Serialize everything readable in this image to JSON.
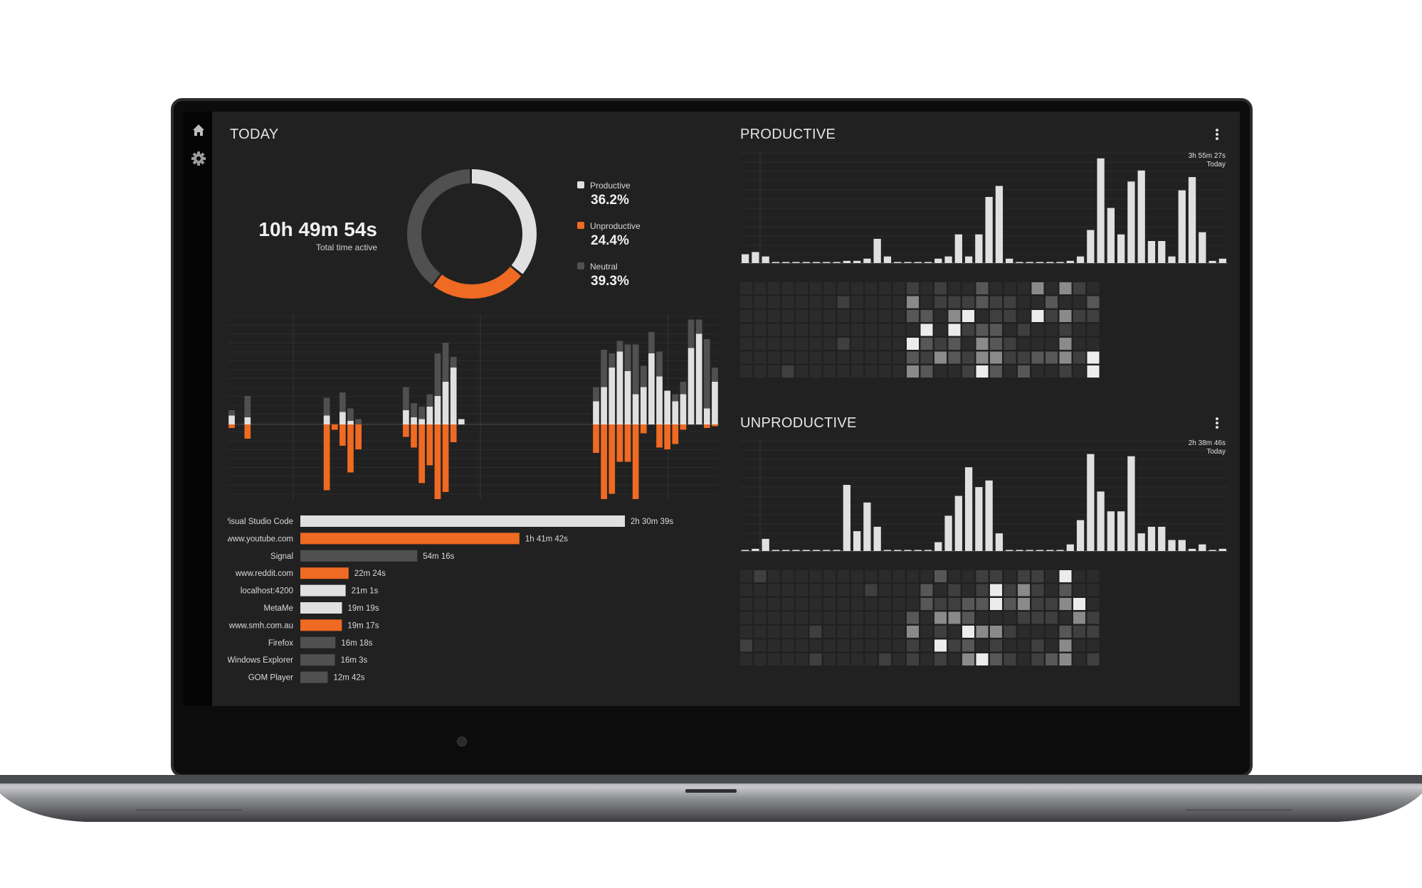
{
  "sidebar": {
    "items": [
      {
        "icon": "home-icon"
      },
      {
        "icon": "gear-icon"
      }
    ]
  },
  "today": {
    "title": "TODAY",
    "total_time": "10h 49m 54s",
    "total_label": "Total time active",
    "legend": [
      {
        "label": "Productive",
        "value": "36.2%",
        "color": "#e0e0e0"
      },
      {
        "label": "Unproductive",
        "value": "24.4%",
        "color": "#ef6a22"
      },
      {
        "label": "Neutral",
        "value": "39.3%",
        "color": "#505050"
      }
    ]
  },
  "colors": {
    "productive": "#e0e0e0",
    "unproductive": "#ef6a22",
    "neutral": "#505050",
    "background": "#212121"
  },
  "apps": [
    {
      "name": "Visual Studio Code",
      "time": "2h 30m 39s",
      "minutes": 150.65,
      "category": "productive"
    },
    {
      "name": "www.youtube.com",
      "time": "1h 41m 42s",
      "minutes": 101.7,
      "category": "unproductive"
    },
    {
      "name": "Signal",
      "time": "54m 16s",
      "minutes": 54.27,
      "category": "neutral"
    },
    {
      "name": "www.reddit.com",
      "time": "22m 24s",
      "minutes": 22.4,
      "category": "unproductive"
    },
    {
      "name": "localhost:4200",
      "time": "21m 1s",
      "minutes": 21.02,
      "category": "productive"
    },
    {
      "name": "MetaMe",
      "time": "19m 19s",
      "minutes": 19.32,
      "category": "productive"
    },
    {
      "name": "www.smh.com.au",
      "time": "19m 17s",
      "minutes": 19.28,
      "category": "unproductive"
    },
    {
      "name": "Firefox",
      "time": "16m 18s",
      "minutes": 16.3,
      "category": "neutral"
    },
    {
      "name": "Windows Explorer",
      "time": "16m 3s",
      "minutes": 16.05,
      "category": "neutral"
    },
    {
      "name": "GOM Player",
      "time": "12m 42s",
      "minutes": 12.7,
      "category": "neutral"
    }
  ],
  "productive_panel": {
    "title": "PRODUCTIVE",
    "tooltip_time": "3h 55m 27s",
    "tooltip_label": "Today"
  },
  "unproductive_panel": {
    "title": "UNPRODUCTIVE",
    "tooltip_time": "2h 38m 46s",
    "tooltip_label": "Today"
  },
  "chart_data": [
    {
      "type": "pie",
      "labels": [
        "Productive",
        "Unproductive",
        "Neutral"
      ],
      "values": [
        36.2,
        24.4,
        39.3
      ]
    },
    {
      "type": "bar",
      "stacked": true,
      "series": [
        {
          "name": "Productive",
          "values": [
            0.5,
            0,
            0.4,
            0,
            0,
            0,
            0,
            0,
            0,
            0,
            0,
            0,
            0.5,
            0,
            0.7,
            0.2,
            0,
            0,
            0,
            0,
            0,
            0,
            0.8,
            0.4,
            0.3,
            1,
            1.6,
            2.4,
            3.2,
            0.3,
            0,
            0,
            0,
            0,
            0,
            0,
            0,
            0,
            0,
            0,
            0,
            0,
            0,
            0,
            0,
            0,
            1.3,
            2.1,
            3.2,
            4.1,
            3,
            1.7,
            2.1,
            4,
            2.7,
            1.9,
            1.3,
            1.7,
            4.3,
            5.1,
            0.9,
            2.4
          ]
        },
        {
          "name": "Unproductive",
          "values": [
            -0.2,
            0,
            -0.8,
            0,
            0,
            0,
            0,
            0,
            0,
            0,
            0,
            0,
            -3.7,
            -0.3,
            -1.2,
            -2.7,
            -1.4,
            0,
            0,
            0,
            0,
            0,
            -0.7,
            -1.3,
            -3.3,
            -2.3,
            -4.3,
            -3.8,
            -1,
            0,
            0,
            0,
            0,
            0,
            0,
            0,
            0,
            0,
            0,
            0,
            0,
            0,
            0,
            0,
            0,
            0,
            -1.6,
            -5.3,
            -3.9,
            -2.1,
            -2.1,
            -5.2,
            -0.5,
            0,
            -1.3,
            -1.4,
            -1.1,
            -0.3,
            0,
            0,
            -0.2,
            -0.1
          ]
        },
        {
          "name": "Neutral",
          "values": [
            0.3,
            0,
            1.2,
            0,
            0,
            0,
            0,
            0,
            0,
            0,
            0,
            0,
            1,
            0,
            1.1,
            0.7,
            0.3,
            0,
            0,
            0,
            0,
            0,
            1.3,
            0.8,
            0.7,
            0.7,
            2.4,
            2.2,
            0.6,
            0,
            0,
            0,
            0,
            0,
            0,
            0,
            0,
            0,
            0,
            0,
            0,
            0,
            0,
            0,
            0,
            0,
            0.8,
            2.1,
            0.8,
            0.6,
            1.5,
            2.8,
            1.2,
            1.2,
            1.4,
            0,
            0.4,
            0.7,
            1.6,
            0.8,
            3.9,
            0.8
          ]
        }
      ]
    },
    {
      "type": "bar",
      "series": [
        {
          "name": "Productive",
          "values": [
            0.08,
            0.1,
            0.06,
            0,
            0,
            0,
            0,
            0,
            0,
            0,
            0.02,
            0.02,
            0.04,
            0.22,
            0.06,
            0,
            0,
            0,
            0,
            0.04,
            0.06,
            0.26,
            0.06,
            0.26,
            0.6,
            0.7,
            0.04,
            0,
            0,
            0,
            0,
            0,
            0.02,
            0.06,
            0.3,
            0.95,
            0.5,
            0.26,
            0.74,
            0.84,
            0.2,
            0.2,
            0.06,
            0.66,
            0.78,
            0.28,
            0.02,
            0.04
          ]
        }
      ]
    },
    {
      "type": "bar",
      "series": [
        {
          "name": "Unproductive",
          "values": [
            0,
            0.02,
            0.11,
            0,
            0,
            0,
            0,
            0,
            0,
            0,
            0.6,
            0.18,
            0.44,
            0.22,
            0,
            0,
            0,
            0,
            0,
            0.08,
            0.32,
            0.5,
            0.76,
            0.58,
            0.64,
            0.16,
            0,
            0,
            0,
            0,
            0,
            0,
            0.06,
            0.28,
            0.88,
            0.54,
            0.36,
            0.36,
            0.86,
            0.16,
            0.22,
            0.22,
            0.1,
            0.1,
            0.02,
            0.06,
            0,
            0.02
          ]
        }
      ]
    }
  ]
}
